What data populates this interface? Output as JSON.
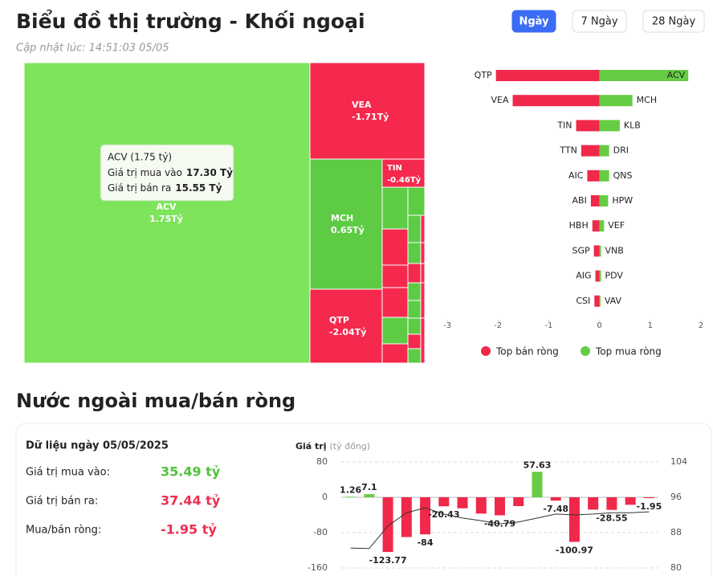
{
  "header": {
    "title": "Biểu đồ thị trường - Khối ngoại",
    "updated": "Cập nhật lúc: 14:51:03 05/05",
    "tabs": [
      "Ngày",
      "7 Ngày",
      "28 Ngày"
    ],
    "active_tab": 0,
    "active_color": "#3b6cf6"
  },
  "chart_data": [
    {
      "type": "treemap",
      "categories": [
        "ACV",
        "VEA",
        "MCH",
        "TIN",
        "QTP"
      ],
      "values": [
        1.75,
        -1.71,
        0.65,
        -0.46,
        -2.04
      ],
      "value_labels": [
        "1.75Tỷ",
        "-1.71Tỷ",
        "0.65Tỷ",
        "-0.46Tỷ",
        "-2.04Tỷ"
      ],
      "colors": [
        "#7de45c",
        "#f5294d",
        "#5ecb45",
        "#f5294d",
        "#f5294d"
      ],
      "tooltip": {
        "title": "ACV (1.75 tỷ)",
        "rows": [
          {
            "label": "Giá trị mua vào",
            "value": "17.30 Tỷ"
          },
          {
            "label": "Giá trị bán ra",
            "value": "15.55 Tỷ"
          }
        ]
      }
    },
    {
      "type": "diverging_bar",
      "series": [
        {
          "name": "Top bán ròng",
          "color": "#f0284a",
          "categories": [
            "QTP",
            "VEA",
            "TIN",
            "TTN",
            "AIC",
            "ABI",
            "HBH",
            "SGP",
            "AIG",
            "CSI"
          ],
          "values": [
            -2.04,
            -1.71,
            -0.46,
            -0.36,
            -0.24,
            -0.17,
            -0.14,
            -0.11,
            -0.08,
            -0.1
          ]
        },
        {
          "name": "Top mua ròng",
          "color": "#66cc44",
          "categories": [
            "ACV",
            "MCH",
            "KLB",
            "DRI",
            "QNS",
            "HPW",
            "VEF",
            "VNB",
            "PDV",
            "VAV"
          ],
          "values": [
            1.75,
            0.65,
            0.4,
            0.19,
            0.19,
            0.17,
            0.09,
            0.03,
            0.03,
            0.02
          ]
        }
      ],
      "xlim": [
        -3,
        2
      ],
      "xticks": [
        -3,
        -2,
        -1,
        0,
        1,
        2
      ],
      "legend": "bottom"
    },
    {
      "type": "bar_line",
      "y_label": "Giá trị",
      "y_unit": "(tỷ đồng)",
      "ylim": [
        -160,
        80
      ],
      "yticks": [
        -160,
        -80,
        0,
        80
      ],
      "y2lim": [
        80,
        104
      ],
      "y2ticks": [
        80,
        88,
        96,
        104
      ],
      "grid": true,
      "series": [
        {
          "type": "bar",
          "positive_color": "#66cc44",
          "negative_color": "#f0284a",
          "values": [
            1.26,
            7.1,
            -123.77,
            -90,
            -84,
            -20.43,
            -25,
            -37,
            -40.79,
            -20,
            57.63,
            -7.48,
            -100.97,
            -28,
            -28.55,
            -17,
            -1.95
          ],
          "value_labels": [
            "1.26",
            "7.1",
            "-123.77",
            null,
            "-84",
            "-20.43",
            null,
            null,
            "-40.79",
            null,
            "57.63",
            "-7.48",
            "-100.97",
            null,
            "-28.55",
            null,
            "-1.95"
          ]
        },
        {
          "type": "line",
          "axis": "y2",
          "color": "#333333",
          "values": [
            84.5,
            84.4,
            89.5,
            92.5,
            93.6,
            92.2,
            91.3,
            90.7,
            90.0,
            90.4,
            91.3,
            92.2,
            92.0,
            92.2,
            92.5,
            92.5,
            92.7
          ]
        }
      ]
    }
  ],
  "section": {
    "title": "Nước ngoài mua/bán ròng"
  },
  "summary": {
    "title": "Dữ liệu ngày 05/05/2025",
    "rows": [
      {
        "label": "Giá trị mua vào:",
        "value": "35.49 tỷ",
        "color": "#4fc23b"
      },
      {
        "label": "Giá trị bán ra:",
        "value": "37.44 tỷ",
        "color": "#ef2d4f"
      },
      {
        "label": "Mua/bán ròng:",
        "value": "-1.95 tỷ",
        "color": "#ef2d4f"
      }
    ]
  }
}
